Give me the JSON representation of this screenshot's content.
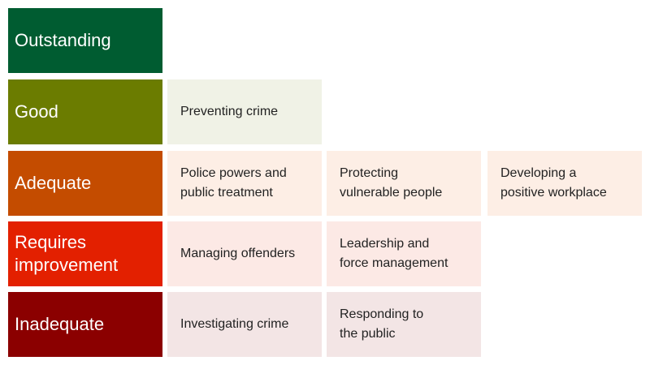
{
  "rows": [
    {
      "rating": "Outstanding",
      "color": "#005c31",
      "cell_bg": "",
      "areas": []
    },
    {
      "rating": "Good",
      "color": "#6b7c00",
      "cell_bg": "#f0f2e6",
      "areas": [
        "Preventing crime"
      ]
    },
    {
      "rating": "Adequate",
      "color": "#c44c00",
      "cell_bg": "#fdeee5",
      "areas": [
        "Police powers and\npublic treatment",
        "Protecting\nvulnerable people",
        "Developing a\npositive workplace"
      ]
    },
    {
      "rating": "Requires\nimprovement",
      "color": "#e32000",
      "cell_bg": "#fce9e5",
      "areas": [
        "Managing offenders",
        "Leadership and\nforce management"
      ]
    },
    {
      "rating": "Inadequate",
      "color": "#8b0000",
      "cell_bg": "#f3e5e5",
      "areas": [
        "Investigating crime",
        "Responding to\nthe public"
      ]
    }
  ]
}
